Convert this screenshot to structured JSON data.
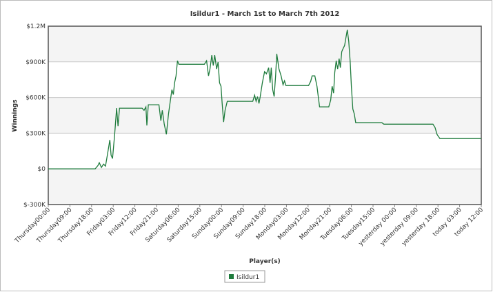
{
  "chart_data": {
    "type": "line",
    "title": "Isildur1 - March 1st to March 7th 2012",
    "x_label": "Player(s)",
    "y_label": "Winnings",
    "xlim": [
      0,
      180
    ],
    "xticks": [
      {
        "value": 0,
        "label": "Thursday00:00"
      },
      {
        "value": 9,
        "label": "Thursday09:00"
      },
      {
        "value": 18,
        "label": "Thursday18:00"
      },
      {
        "value": 27,
        "label": "Friday03:00"
      },
      {
        "value": 36,
        "label": "Friday12:00"
      },
      {
        "value": 45,
        "label": "Friday21:00"
      },
      {
        "value": 54,
        "label": "Saturday06:00"
      },
      {
        "value": 63,
        "label": "Saturday15:00"
      },
      {
        "value": 72,
        "label": "Sunday00:00"
      },
      {
        "value": 81,
        "label": "Sunday09:00"
      },
      {
        "value": 90,
        "label": "Sunday18:00"
      },
      {
        "value": 99,
        "label": "Monday03:00"
      },
      {
        "value": 108,
        "label": "Monday12:00"
      },
      {
        "value": 117,
        "label": "Monday21:00"
      },
      {
        "value": 126,
        "label": "Tuesday06:00"
      },
      {
        "value": 135,
        "label": "Tuesday15:00"
      },
      {
        "value": 144,
        "label": "yesterday 00:00"
      },
      {
        "value": 153,
        "label": "yesterday 09:00"
      },
      {
        "value": 162,
        "label": "yesterday 18:00"
      },
      {
        "value": 171,
        "label": "today 03:00"
      },
      {
        "value": 180,
        "label": "today 12:00"
      }
    ],
    "ylim": [
      -300000,
      1200000
    ],
    "yticks": [
      {
        "value": -300000,
        "label": "$-300K"
      },
      {
        "value": 0,
        "label": "$0"
      },
      {
        "value": 300000,
        "label": "$300K"
      },
      {
        "value": 600000,
        "label": "$600K"
      },
      {
        "value": 900000,
        "label": "$900K"
      },
      {
        "value": 1200000,
        "label": "$1.2M"
      }
    ],
    "grid": true,
    "legend_position": "bottom",
    "x": [
      0,
      19.5,
      20.7,
      21.2,
      22.1,
      23,
      23.8,
      24.7,
      25.6,
      26.1,
      26.7,
      27.6,
      28.4,
      29,
      29.6,
      39,
      39.8,
      40.6,
      41,
      41.6,
      46,
      46.8,
      47.4,
      48.2,
      49.1,
      50,
      50.8,
      51.4,
      52,
      52.5,
      53.1,
      53.7,
      54.3,
      64.9,
      65.8,
      66.6,
      67.2,
      68,
      68.6,
      69.2,
      70,
      70.6,
      71.2,
      71.8,
      72.3,
      72.9,
      73.5,
      74.4,
      85,
      85.8,
      86.4,
      87,
      87.6,
      88.1,
      89,
      89.9,
      90.7,
      91.6,
      92.2,
      92.7,
      93.3,
      93.9,
      94.5,
      95,
      95.9,
      96.8,
      97.6,
      98.2,
      98.8,
      108.2,
      109.1,
      109.7,
      110.8,
      111.7,
      112.3,
      112.8,
      116.6,
      117.4,
      118,
      118.6,
      119.1,
      119.7,
      120.3,
      120.9,
      121.4,
      122,
      122.6,
      123.2,
      123.7,
      124.3,
      124.9,
      125.5,
      126,
      126.6,
      127.2,
      127.8,
      138.7,
      139.5,
      159.9,
      160.8,
      161.6,
      162.8,
      180
    ],
    "series": [
      {
        "name": "Isildur1",
        "color": "#1e7b3c",
        "values": [
          0,
          0,
          29000,
          52000,
          12000,
          40000,
          23000,
          133000,
          243000,
          116000,
          87000,
          290000,
          510000,
          359000,
          510000,
          510000,
          492000,
          521000,
          365000,
          539000,
          539000,
          405000,
          492000,
          376000,
          290000,
          463000,
          579000,
          666000,
          625000,
          724000,
          782000,
          909000,
          880000,
          880000,
          909000,
          782000,
          840000,
          956000,
          869000,
          956000,
          840000,
          898000,
          724000,
          695000,
          550000,
          394000,
          492000,
          568000,
          568000,
          620000,
          568000,
          608000,
          550000,
          608000,
          724000,
          817000,
          799000,
          851000,
          724000,
          851000,
          666000,
          608000,
          782000,
          967000,
          840000,
          782000,
          707000,
          741000,
          701000,
          701000,
          736000,
          782000,
          782000,
          695000,
          597000,
          521000,
          521000,
          579000,
          695000,
          637000,
          811000,
          909000,
          840000,
          927000,
          851000,
          985000,
          1013000,
          1037000,
          1100000,
          1170000,
          1071000,
          898000,
          695000,
          504000,
          463000,
          388000,
          388000,
          376000,
          376000,
          347000,
          290000,
          255000,
          255000
        ]
      }
    ]
  }
}
